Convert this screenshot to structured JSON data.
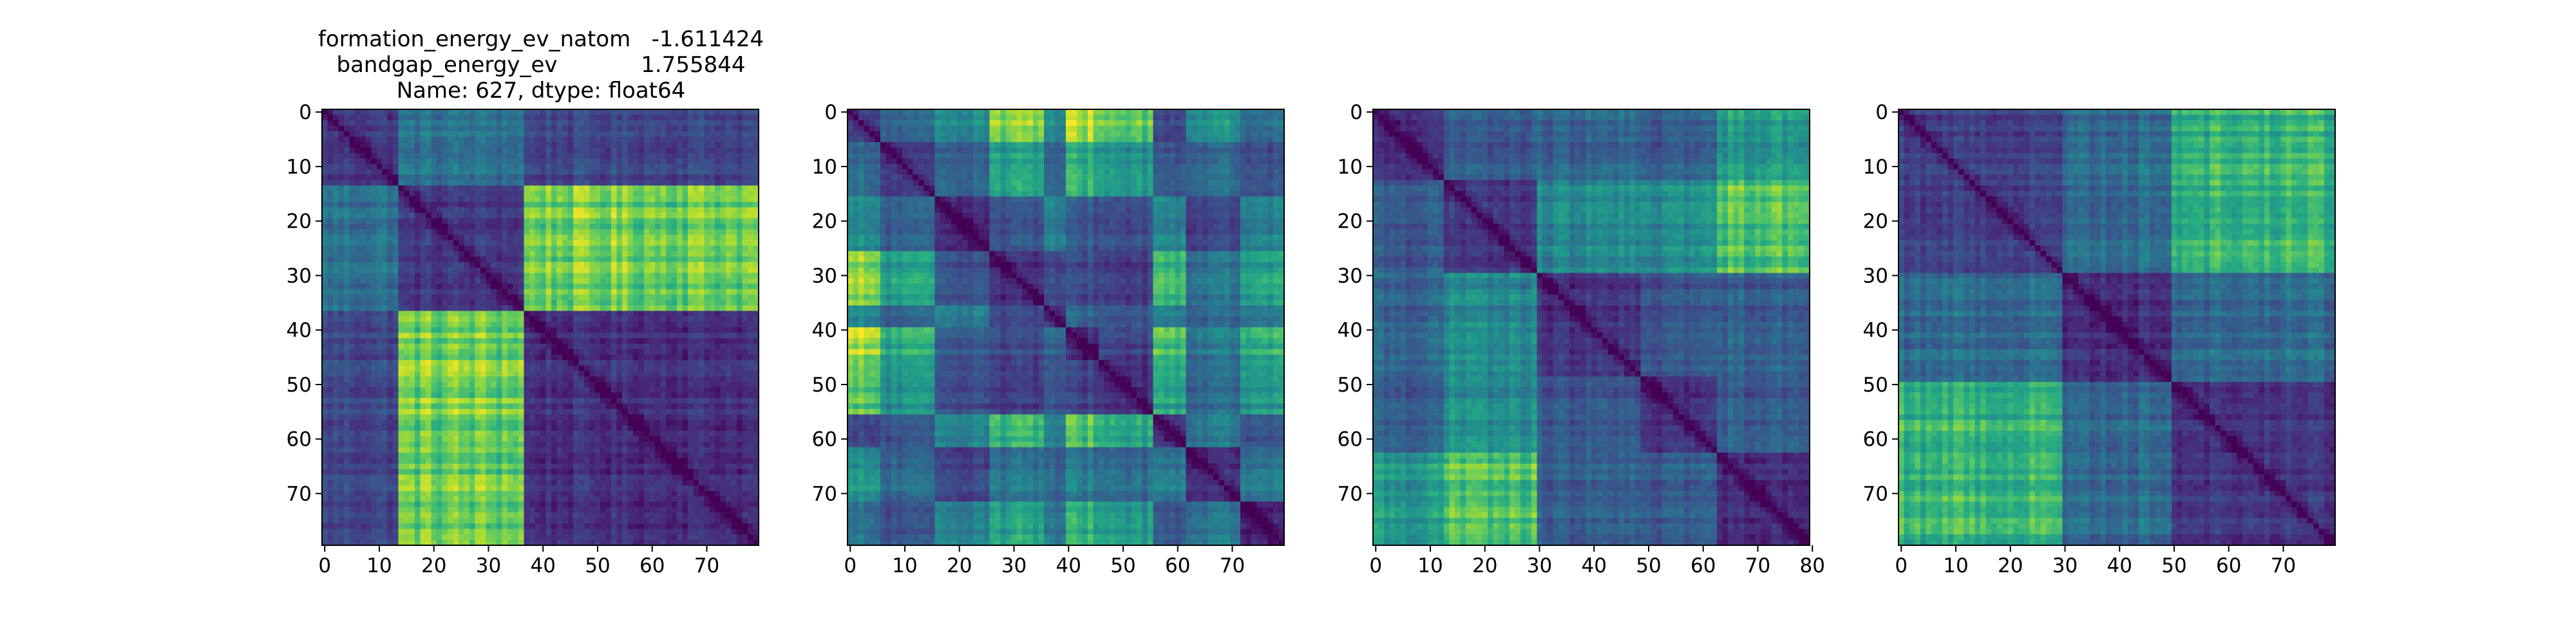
{
  "figure": {
    "title_lines": [
      "formation_energy_ev_natom   -1.611424",
      "bandgap_energy_ev            1.755844",
      "Name: 627, dtype: float64"
    ]
  },
  "chart_data": [
    {
      "type": "heatmap",
      "n": 80,
      "xticks": [
        0,
        10,
        20,
        30,
        40,
        50,
        60,
        70
      ],
      "yticks": [
        0,
        10,
        20,
        30,
        40,
        50,
        60,
        70
      ],
      "xlim": [
        0,
        79
      ],
      "ylim": [
        79,
        0
      ],
      "colormap": "viridis",
      "block_boundaries": [
        0,
        14,
        37,
        80
      ],
      "block_levels": [
        [
          0.18,
          0.38,
          0.22
        ],
        [
          0.38,
          0.16,
          0.78
        ],
        [
          0.22,
          0.78,
          0.14
        ]
      ]
    },
    {
      "type": "heatmap",
      "n": 80,
      "xticks": [
        0,
        10,
        20,
        30,
        40,
        50,
        60,
        70
      ],
      "yticks": [
        0,
        10,
        20,
        30,
        40,
        50,
        60,
        70
      ],
      "xlim": [
        0,
        79
      ],
      "ylim": [
        79,
        0
      ],
      "colormap": "viridis",
      "block_boundaries": [
        0,
        6,
        16,
        26,
        36,
        40,
        46,
        56,
        62,
        72,
        80
      ],
      "block_levels": [
        [
          0.18,
          0.3,
          0.48,
          0.8,
          0.42,
          0.85,
          0.72,
          0.2,
          0.48,
          0.38
        ],
        [
          0.3,
          0.15,
          0.32,
          0.55,
          0.28,
          0.6,
          0.5,
          0.26,
          0.32,
          0.26
        ],
        [
          0.48,
          0.32,
          0.15,
          0.28,
          0.42,
          0.3,
          0.26,
          0.48,
          0.22,
          0.5
        ],
        [
          0.8,
          0.55,
          0.28,
          0.14,
          0.2,
          0.22,
          0.18,
          0.68,
          0.38,
          0.62
        ],
        [
          0.42,
          0.28,
          0.42,
          0.2,
          0.15,
          0.3,
          0.24,
          0.4,
          0.3,
          0.4
        ],
        [
          0.85,
          0.6,
          0.3,
          0.22,
          0.3,
          0.12,
          0.2,
          0.72,
          0.4,
          0.68
        ],
        [
          0.72,
          0.5,
          0.26,
          0.18,
          0.24,
          0.2,
          0.14,
          0.6,
          0.34,
          0.58
        ],
        [
          0.2,
          0.26,
          0.48,
          0.68,
          0.4,
          0.72,
          0.6,
          0.15,
          0.4,
          0.3
        ],
        [
          0.48,
          0.32,
          0.22,
          0.38,
          0.3,
          0.4,
          0.34,
          0.4,
          0.14,
          0.42
        ],
        [
          0.38,
          0.26,
          0.5,
          0.62,
          0.4,
          0.68,
          0.58,
          0.3,
          0.42,
          0.15
        ]
      ]
    },
    {
      "type": "heatmap",
      "n": 80,
      "xticks": [
        0,
        10,
        20,
        30,
        40,
        50,
        60,
        70,
        80
      ],
      "yticks": [
        0,
        10,
        20,
        30,
        40,
        50,
        60,
        70
      ],
      "xlim": [
        0,
        79
      ],
      "ylim": [
        79,
        0
      ],
      "colormap": "viridis",
      "block_boundaries": [
        0,
        13,
        30,
        49,
        63,
        80
      ],
      "block_levels": [
        [
          0.14,
          0.28,
          0.32,
          0.3,
          0.55
        ],
        [
          0.28,
          0.15,
          0.45,
          0.48,
          0.72
        ],
        [
          0.32,
          0.45,
          0.14,
          0.26,
          0.3
        ],
        [
          0.3,
          0.48,
          0.26,
          0.14,
          0.3
        ],
        [
          0.55,
          0.72,
          0.3,
          0.3,
          0.14
        ]
      ]
    },
    {
      "type": "heatmap",
      "n": 80,
      "xticks": [
        0,
        10,
        20,
        30,
        40,
        50,
        60,
        70
      ],
      "yticks": [
        0,
        10,
        20,
        30,
        40,
        50,
        60,
        70
      ],
      "xlim": [
        0,
        79
      ],
      "ylim": [
        79,
        0
      ],
      "colormap": "viridis",
      "block_boundaries": [
        0,
        30,
        50,
        80
      ],
      "block_levels": [
        [
          0.2,
          0.36,
          0.66
        ],
        [
          0.36,
          0.14,
          0.35
        ],
        [
          0.66,
          0.35,
          0.16
        ]
      ]
    }
  ]
}
